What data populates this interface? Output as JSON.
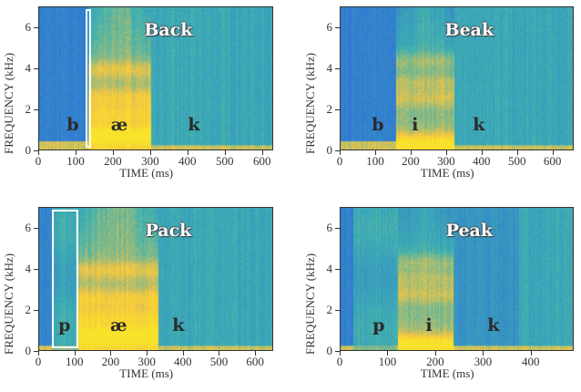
{
  "chart_data": [
    {
      "type": "heatmap",
      "title": "Back",
      "xlabel": "TIME (ms)",
      "ylabel": "FREQUENCY (kHz)",
      "xlim": [
        0,
        630
      ],
      "ylim": [
        0,
        7
      ],
      "xticks": [
        0,
        100,
        200,
        300,
        400,
        500,
        600
      ],
      "yticks": [
        0,
        2,
        4,
        6
      ],
      "phones": [
        {
          "label": "b",
          "t": 90
        },
        {
          "label": "æ",
          "t": 215
        },
        {
          "label": "k",
          "t": 415
        }
      ],
      "highlight_box_ms": [
        125,
        138
      ],
      "segments": [
        {
          "t0": 0,
          "t1": 130,
          "energy": "low",
          "voice_bar_khz": 0.5
        },
        {
          "t0": 130,
          "t1": 300,
          "energy": "high",
          "formants_khz": [
            0.8,
            1.8,
            2.6,
            4.0
          ]
        },
        {
          "t0": 300,
          "t1": 465,
          "energy": "mid",
          "voice_bar_khz": 0.3
        },
        {
          "t0": 465,
          "t1": 630,
          "energy": "mid",
          "voice_bar_khz": 0.3
        }
      ]
    },
    {
      "type": "heatmap",
      "title": "Beak",
      "xlabel": "TIME (ms)",
      "ylabel": "FREQUENCY (kHz)",
      "xlim": [
        0,
        660
      ],
      "ylim": [
        0,
        7
      ],
      "xticks": [
        0,
        100,
        200,
        300,
        400,
        500,
        600
      ],
      "yticks": [
        0,
        2,
        4,
        6
      ],
      "phones": [
        {
          "label": "b",
          "t": 105
        },
        {
          "label": "i",
          "t": 210
        },
        {
          "label": "k",
          "t": 390
        }
      ],
      "highlight_box_ms": null,
      "segments": [
        {
          "t0": 0,
          "t1": 155,
          "energy": "low",
          "voice_bar_khz": 0.5
        },
        {
          "t0": 155,
          "t1": 320,
          "energy": "mid-high",
          "formants_khz": [
            0.4,
            2.6,
            3.4,
            4.4
          ]
        },
        {
          "t0": 320,
          "t1": 460,
          "energy": "mid",
          "voice_bar_khz": 0.3
        },
        {
          "t0": 460,
          "t1": 660,
          "energy": "mid",
          "voice_bar_khz": 0.3
        }
      ]
    },
    {
      "type": "heatmap",
      "title": "Pack",
      "xlabel": "TIME (ms)",
      "ylabel": "FREQUENCY (kHz)",
      "xlim": [
        0,
        650
      ],
      "ylim": [
        0,
        7
      ],
      "xticks": [
        0,
        100,
        200,
        300,
        400,
        500,
        600
      ],
      "yticks": [
        0,
        2,
        4,
        6
      ],
      "phones": [
        {
          "label": "p",
          "t": 70
        },
        {
          "label": "æ",
          "t": 220
        },
        {
          "label": "k",
          "t": 385
        }
      ],
      "highlight_box_ms": [
        35,
        108
      ],
      "segments": [
        {
          "t0": 0,
          "t1": 35,
          "energy": "low",
          "voice_bar_khz": 0.3
        },
        {
          "t0": 35,
          "t1": 108,
          "energy": "mid",
          "aspiration": true
        },
        {
          "t0": 108,
          "t1": 330,
          "energy": "high",
          "formants_khz": [
            0.8,
            1.7,
            2.6,
            4.0
          ]
        },
        {
          "t0": 330,
          "t1": 432,
          "energy": "mid",
          "voice_bar_khz": 0.3
        },
        {
          "t0": 432,
          "t1": 650,
          "energy": "mid",
          "voice_bar_khz": 0.3
        }
      ]
    },
    {
      "type": "heatmap",
      "title": "Peak",
      "xlabel": "TIME (ms)",
      "ylabel": "FREQUENCY (kHz)",
      "xlim": [
        0,
        490
      ],
      "ylim": [
        0,
        7
      ],
      "xticks": [
        0,
        100,
        200,
        300,
        400
      ],
      "yticks": [
        0,
        2,
        4,
        6
      ],
      "phones": [
        {
          "label": "p",
          "t": 80
        },
        {
          "label": "i",
          "t": 185
        },
        {
          "label": "k",
          "t": 320
        }
      ],
      "highlight_box_ms": null,
      "segments": [
        {
          "t0": 0,
          "t1": 25,
          "energy": "low",
          "voice_bar_khz": 0.3
        },
        {
          "t0": 25,
          "t1": 120,
          "energy": "mid",
          "aspiration": true
        },
        {
          "t0": 120,
          "t1": 235,
          "energy": "mid-high",
          "formants_khz": [
            0.4,
            2.8,
            3.6,
            4.4
          ]
        },
        {
          "t0": 235,
          "t1": 370,
          "energy": "low-mid",
          "voice_bar_khz": 0.3
        },
        {
          "t0": 370,
          "t1": 490,
          "energy": "mid",
          "voice_bar_khz": 0.3
        }
      ]
    }
  ],
  "colors": {
    "low": "#2f6fd8",
    "mid": "#3fb2b0",
    "high": "#f5c543",
    "peak": "#f8e22a",
    "box": "#ffffff"
  }
}
